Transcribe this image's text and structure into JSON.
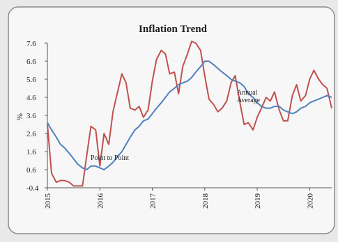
{
  "chart_data": {
    "type": "line",
    "title": "Inflation Trend",
    "y_label": "%",
    "x": [
      2015,
      2015.08,
      2015.17,
      2015.25,
      2015.33,
      2015.42,
      2015.5,
      2015.58,
      2015.67,
      2015.75,
      2015.83,
      2015.92,
      2016,
      2016.08,
      2016.17,
      2016.25,
      2016.33,
      2016.42,
      2016.5,
      2016.58,
      2016.67,
      2016.75,
      2016.83,
      2016.92,
      2017,
      2017.08,
      2017.17,
      2017.25,
      2017.33,
      2017.42,
      2017.5,
      2017.58,
      2017.67,
      2017.75,
      2017.83,
      2017.92,
      2018,
      2018.08,
      2018.17,
      2018.25,
      2018.33,
      2018.42,
      2018.5,
      2018.58,
      2018.67,
      2018.75,
      2018.83,
      2018.92,
      2019,
      2019.08,
      2019.17,
      2019.25,
      2019.33,
      2019.42,
      2019.5,
      2019.58,
      2019.67,
      2019.75,
      2019.83,
      2019.92,
      2020,
      2020.08,
      2020.17,
      2020.25,
      2020.33,
      2020.42
    ],
    "series": [
      {
        "name": "Point to Point",
        "color": "#c0504d",
        "values": [
          3.1,
          0.4,
          -0.1,
          0.0,
          0.0,
          -0.1,
          -0.3,
          -0.3,
          -0.3,
          1.4,
          3.0,
          2.8,
          0.8,
          2.6,
          2.0,
          3.8,
          4.8,
          5.9,
          5.4,
          4.0,
          3.9,
          4.1,
          3.5,
          3.9,
          5.5,
          6.7,
          7.2,
          7.0,
          5.9,
          6.0,
          4.8,
          6.3,
          7.0,
          7.7,
          7.6,
          7.2,
          5.8,
          4.5,
          4.2,
          3.8,
          4.0,
          4.4,
          5.4,
          5.8,
          4.3,
          3.1,
          3.2,
          2.8,
          3.5,
          4.0,
          4.6,
          4.4,
          4.9,
          3.9,
          3.3,
          3.3,
          4.7,
          5.3,
          4.4,
          4.7,
          5.6,
          6.1,
          5.6,
          5.3,
          5.1,
          4.0
        ]
      },
      {
        "name": "Annual Average",
        "color": "#4f81bd",
        "values": [
          3.2,
          2.8,
          2.4,
          2.0,
          1.8,
          1.5,
          1.2,
          0.9,
          0.7,
          0.6,
          0.8,
          0.8,
          0.7,
          0.6,
          0.8,
          1.0,
          1.3,
          1.6,
          2.0,
          2.4,
          2.8,
          3.0,
          3.3,
          3.4,
          3.7,
          4.0,
          4.3,
          4.6,
          4.9,
          5.1,
          5.3,
          5.4,
          5.5,
          5.7,
          6.0,
          6.3,
          6.6,
          6.6,
          6.4,
          6.2,
          6.0,
          5.8,
          5.6,
          5.5,
          5.4,
          5.2,
          4.8,
          4.6,
          4.3,
          4.1,
          4.0,
          4.0,
          4.1,
          4.1,
          3.9,
          3.8,
          3.7,
          3.8,
          4.0,
          4.1,
          4.3,
          4.4,
          4.5,
          4.6,
          4.7,
          4.6
        ]
      }
    ],
    "xlim": [
      2015,
      2020.42
    ],
    "xticks": [
      2015,
      2016,
      2017,
      2018,
      2019,
      2020
    ],
    "ylim": [
      -0.4,
      7.6
    ],
    "yticks": [
      -0.4,
      0.6,
      1.6,
      2.6,
      3.6,
      4.6,
      5.6,
      6.6,
      7.6
    ]
  }
}
